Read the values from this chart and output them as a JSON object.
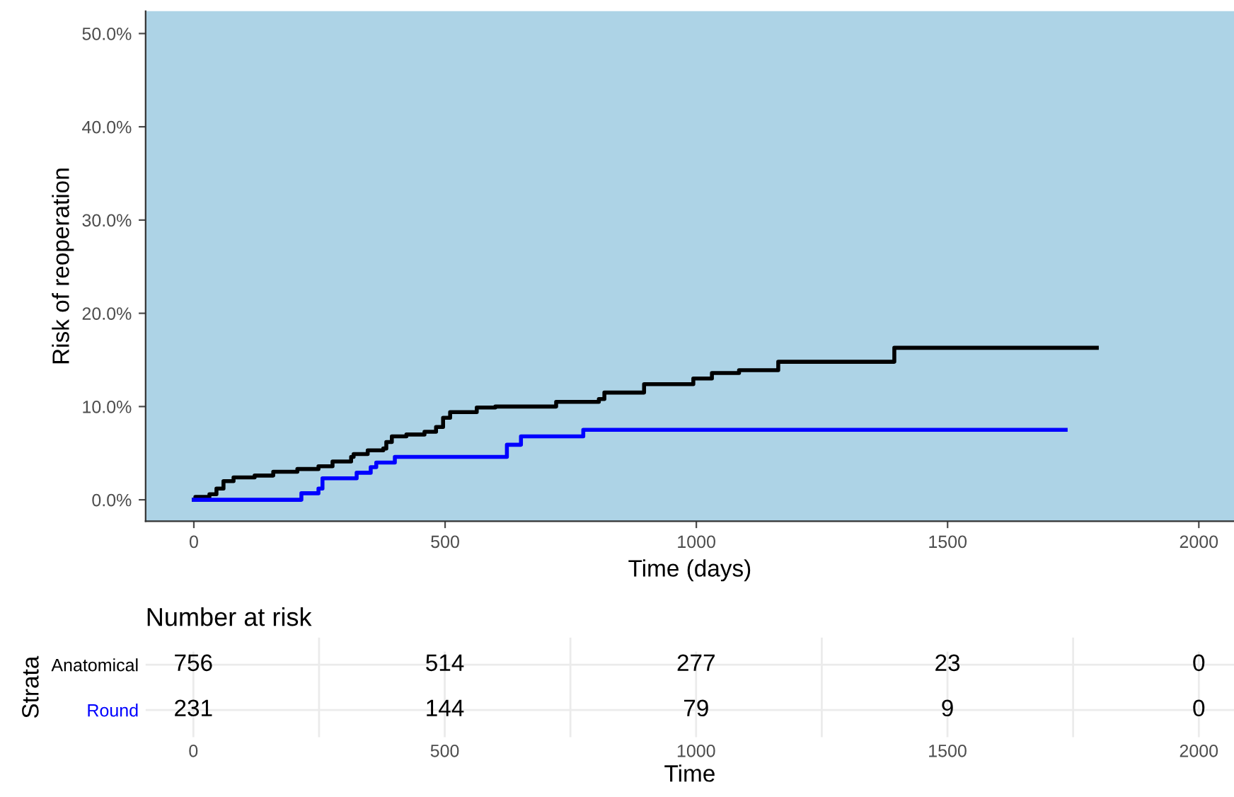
{
  "chart_data": [
    {
      "type": "step",
      "xlabel": "Time (days)",
      "ylabel": "Risk of reoperation",
      "series": [
        {
          "color": "#000000",
          "x": [
            0,
            3,
            31,
            45,
            59,
            79,
            121,
            158,
            206,
            248,
            276,
            313,
            318,
            346,
            377,
            383,
            394,
            423,
            459,
            482,
            496,
            510,
            563,
            600,
            721,
            806,
            817,
            896,
            994,
            1031,
            1085,
            1163,
            1394,
            1797
          ],
          "values": [
            0,
            0.3,
            0.6,
            1.2,
            2.0,
            2.4,
            2.6,
            3.0,
            3.3,
            3.6,
            4.1,
            4.6,
            4.9,
            5.3,
            5.5,
            6.2,
            6.8,
            7.0,
            7.3,
            7.8,
            8.8,
            9.4,
            9.9,
            10.0,
            10.5,
            10.8,
            11.5,
            12.4,
            13.0,
            13.6,
            13.9,
            14.8,
            16.3,
            16.3
          ]
        },
        {
          "color": "#0000ff",
          "x": [
            0,
            214,
            248,
            256,
            324,
            352,
            363,
            400,
            623,
            651,
            775,
            1735
          ],
          "values": [
            0,
            0.7,
            1.2,
            2.3,
            2.9,
            3.5,
            4.0,
            4.6,
            5.9,
            6.8,
            7.5,
            7.5
          ]
        }
      ],
      "xlim": [
        -96,
        2070
      ],
      "xticks": [
        0,
        500,
        1000,
        1500,
        2000
      ],
      "ylim": [
        -2.3,
        52.4
      ],
      "yticks": [
        {
          "value": 0,
          "label": "0.0%"
        },
        {
          "value": 10,
          "label": "10.0%"
        },
        {
          "value": 20,
          "label": "20.0%"
        },
        {
          "value": 30,
          "label": "30.0%"
        },
        {
          "value": 40,
          "label": "40.0%"
        },
        {
          "value": 50,
          "label": "50.0%"
        }
      ],
      "grid": false,
      "legend": false
    },
    {
      "type": "heatmap",
      "title": "Number at risk",
      "xlabel": "Time",
      "ylabel": "Strata",
      "categories": [
        "0",
        "500",
        "1000",
        "1500",
        "2000"
      ],
      "y_categories": [
        "Anatomical",
        "Round"
      ],
      "cells": [
        [
          756,
          514,
          277,
          23,
          0
        ],
        [
          231,
          144,
          79,
          9,
          0
        ]
      ],
      "data_labels": true,
      "grid": true
    }
  ]
}
